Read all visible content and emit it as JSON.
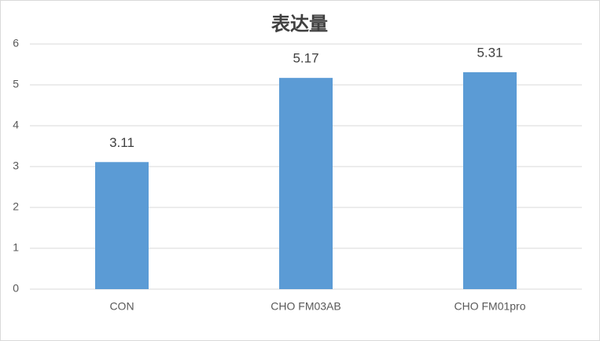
{
  "chart_data": {
    "type": "bar",
    "title": "表达量",
    "categories": [
      "CON",
      "CHO FM03AB",
      "CHO FM01pro"
    ],
    "values": [
      3.11,
      5.17,
      5.31
    ],
    "color": "#5b9bd5",
    "ylim": [
      0,
      6
    ],
    "yticks": [
      0,
      1,
      2,
      3,
      4,
      5,
      6
    ],
    "grid": true
  }
}
